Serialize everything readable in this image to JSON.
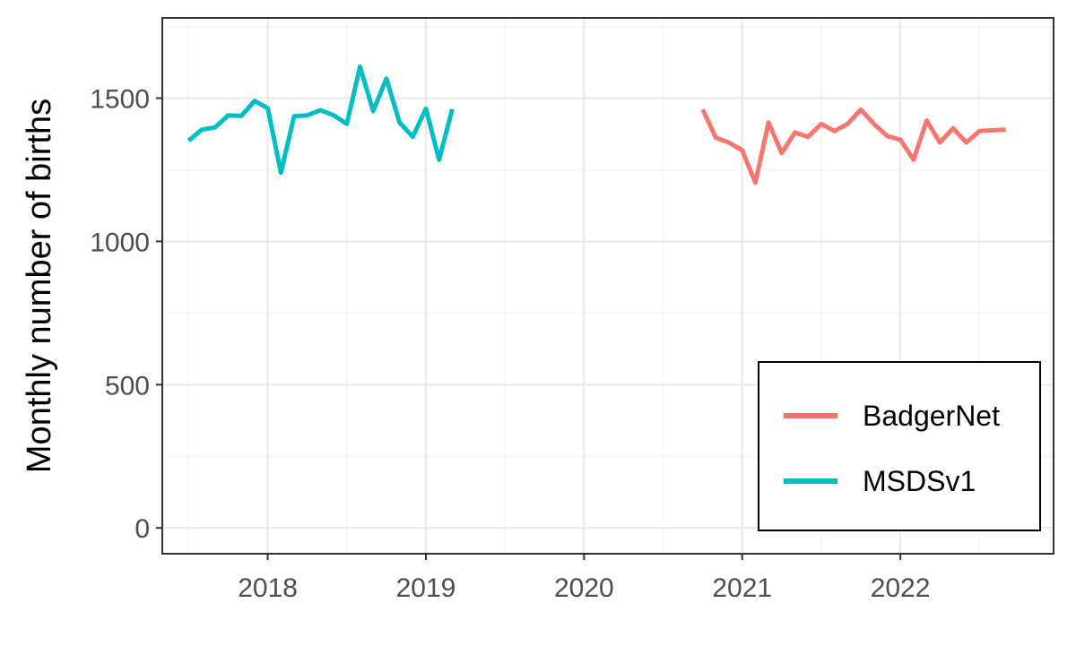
{
  "chart_data": {
    "type": "line",
    "title": "",
    "xlabel": "",
    "ylabel": "Monthly number of births",
    "xlim": [
      "2017-05-01",
      "2022-12-20"
    ],
    "ylim": [
      -90,
      1780
    ],
    "x_ticks": [
      "2018",
      "2019",
      "2020",
      "2021",
      "2022"
    ],
    "y_ticks": [
      "0",
      "500",
      "1000",
      "1500"
    ],
    "grid": true,
    "legend_position": "bottom-right",
    "series": [
      {
        "name": "BadgerNet",
        "color": "#F8766D",
        "x": [
          "2020-10",
          "2020-11",
          "2020-12",
          "2021-01",
          "2021-02",
          "2021-03",
          "2021-04",
          "2021-05",
          "2021-06",
          "2021-07",
          "2021-08",
          "2021-09",
          "2021-10",
          "2021-11",
          "2021-12",
          "2022-01",
          "2022-02",
          "2022-03",
          "2022-04",
          "2022-05",
          "2022-06",
          "2022-07",
          "2022-08",
          "2022-09"
        ],
        "values": [
          1460,
          1362,
          1345,
          1318,
          1205,
          1415,
          1308,
          1380,
          1365,
          1410,
          1385,
          1410,
          1460,
          1410,
          1368,
          1355,
          1285,
          1422,
          1345,
          1395,
          1345,
          1385,
          1388,
          1390
        ]
      },
      {
        "name": "MSDSv1",
        "color": "#00BFC4",
        "x": [
          "2017-07",
          "2017-08",
          "2017-09",
          "2017-10",
          "2017-11",
          "2017-12",
          "2018-01",
          "2018-02",
          "2018-03",
          "2018-04",
          "2018-05",
          "2018-06",
          "2018-07",
          "2018-08",
          "2018-09",
          "2018-10",
          "2018-11",
          "2018-12",
          "2019-01",
          "2019-02",
          "2019-03"
        ],
        "values": [
          1352,
          1390,
          1398,
          1440,
          1438,
          1490,
          1465,
          1240,
          1437,
          1440,
          1458,
          1440,
          1410,
          1610,
          1455,
          1568,
          1415,
          1365,
          1463,
          1285,
          1462
        ]
      }
    ]
  }
}
